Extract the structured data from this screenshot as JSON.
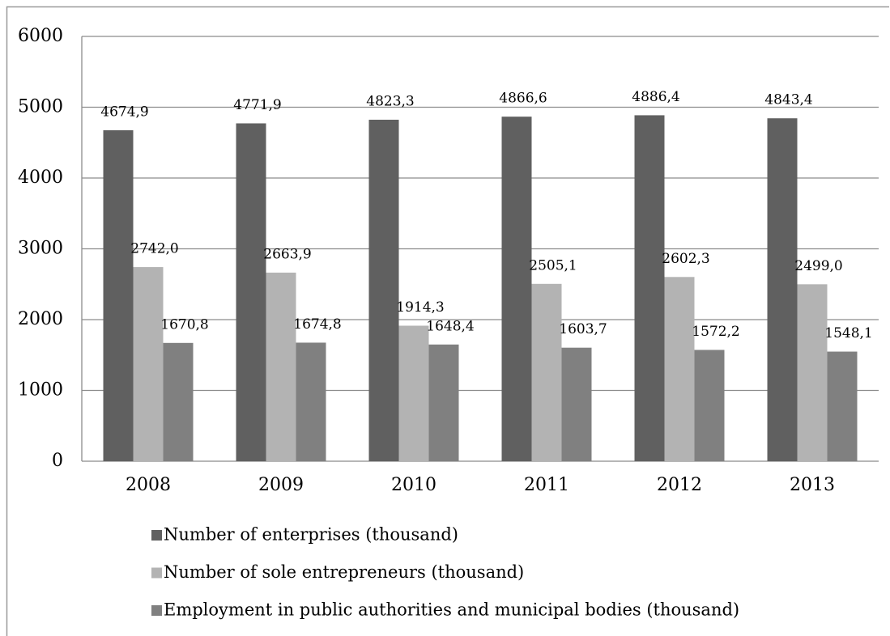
{
  "chart_data": {
    "type": "bar",
    "categories": [
      "2008",
      "2009",
      "2010",
      "2011",
      "2012",
      "2013"
    ],
    "series": [
      {
        "name": "Number of enterprises (thousand)",
        "color": "#606060",
        "values": [
          4674.9,
          4771.9,
          4823.3,
          4866.6,
          4886.4,
          4843.4
        ],
        "value_labels": [
          "4674,9",
          "4771,9",
          "4823,3",
          "4866,6",
          "4886,4",
          "4843,4"
        ]
      },
      {
        "name": "Number of sole entrepreneurs (thousand)",
        "color": "#b3b3b3",
        "values": [
          2742.0,
          2663.9,
          1914.3,
          2505.1,
          2602.3,
          2499.0
        ],
        "value_labels": [
          "2742,0",
          "2663,9",
          "1914,3",
          "2505,1",
          "2602,3",
          "2499,0"
        ]
      },
      {
        "name": "Employment in public authorities and municipal bodies (thousand)",
        "color": "#808080",
        "values": [
          1670.8,
          1674.8,
          1648.4,
          1603.7,
          1572.2,
          1548.1
        ],
        "value_labels": [
          "1670,8",
          "1674,8",
          "1648,4",
          "1603,7",
          "1572,2",
          "1548,1"
        ]
      }
    ],
    "ylim": [
      0,
      6000
    ],
    "yticks": [
      0,
      1000,
      2000,
      3000,
      4000,
      5000,
      6000
    ],
    "grid": true,
    "legend": "bottom"
  }
}
